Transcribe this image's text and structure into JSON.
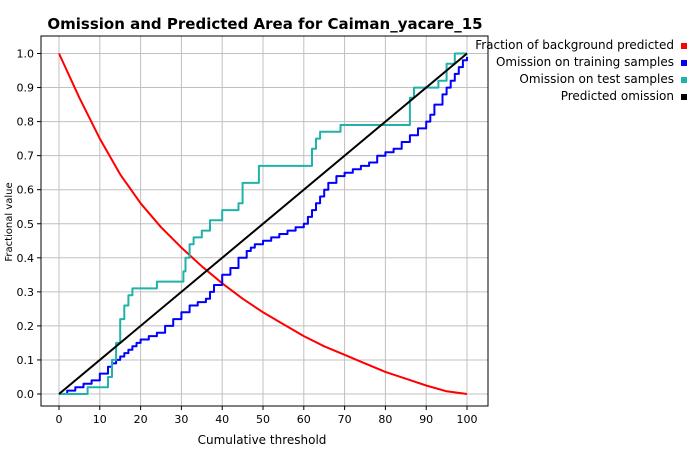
{
  "chart_data": {
    "type": "line",
    "title": "Omission and Predicted Area for Caiman_yacare_15",
    "xlabel": "Cumulative threshold",
    "ylabel": "Fractional value",
    "xlim": [
      0,
      100
    ],
    "ylim": [
      0,
      1.0
    ],
    "xticks": [
      0,
      10,
      20,
      30,
      40,
      50,
      60,
      70,
      80,
      90,
      100
    ],
    "yticks": [
      0.0,
      0.1,
      0.2,
      0.3,
      0.4,
      0.5,
      0.6,
      0.7,
      0.8,
      0.9,
      1.0
    ],
    "ytick_labels": [
      "0.0",
      "0.1",
      "0.2",
      "0.3",
      "0.4",
      "0.5",
      "0.6",
      "0.7",
      "0.8",
      "0.9",
      "1.0"
    ],
    "grid": true,
    "legend_position": "outside-right",
    "series": [
      {
        "name": "Fraction of background predicted",
        "color": "#ff0000",
        "step": false,
        "x": [
          0,
          5,
          10,
          15,
          20,
          25,
          30,
          35,
          40,
          45,
          50,
          55,
          60,
          65,
          70,
          75,
          80,
          85,
          90,
          95,
          100
        ],
        "y": [
          1.0,
          0.87,
          0.75,
          0.645,
          0.56,
          0.49,
          0.43,
          0.375,
          0.325,
          0.28,
          0.24,
          0.205,
          0.17,
          0.14,
          0.115,
          0.09,
          0.065,
          0.045,
          0.025,
          0.008,
          0.0
        ]
      },
      {
        "name": "Omission on training samples",
        "color": "#0000ff",
        "step": true,
        "x": [
          0,
          2,
          4,
          6,
          8,
          10,
          12,
          13,
          14,
          15,
          16,
          17,
          18,
          19,
          20,
          22,
          24,
          26,
          28,
          30,
          32,
          34,
          36,
          37,
          38,
          40,
          42,
          44,
          46,
          47,
          48,
          50,
          52,
          54,
          56,
          58,
          60,
          61,
          62,
          63,
          64,
          65,
          66,
          68,
          70,
          72,
          74,
          76,
          78,
          80,
          82,
          84,
          86,
          88,
          90,
          91,
          92,
          94,
          95,
          96,
          97,
          98,
          99,
          100
        ],
        "y": [
          0.0,
          0.01,
          0.02,
          0.03,
          0.04,
          0.06,
          0.08,
          0.09,
          0.1,
          0.11,
          0.12,
          0.13,
          0.14,
          0.15,
          0.16,
          0.17,
          0.18,
          0.2,
          0.22,
          0.24,
          0.26,
          0.27,
          0.28,
          0.3,
          0.32,
          0.35,
          0.37,
          0.4,
          0.42,
          0.43,
          0.44,
          0.45,
          0.46,
          0.47,
          0.48,
          0.49,
          0.5,
          0.52,
          0.54,
          0.56,
          0.58,
          0.6,
          0.62,
          0.64,
          0.65,
          0.66,
          0.67,
          0.68,
          0.7,
          0.71,
          0.72,
          0.74,
          0.76,
          0.78,
          0.8,
          0.82,
          0.85,
          0.88,
          0.9,
          0.92,
          0.94,
          0.96,
          0.98,
          0.99
        ]
      },
      {
        "name": "Omission on test samples",
        "color": "#20b2aa",
        "step": true,
        "x": [
          0,
          2,
          4,
          7,
          8,
          12,
          13,
          14,
          15,
          16,
          17,
          18,
          19,
          24,
          30,
          30.5,
          31,
          32,
          33,
          35,
          37,
          40,
          44,
          45,
          49,
          61,
          62,
          63,
          64,
          69,
          86,
          87,
          88,
          93,
          95,
          97,
          100
        ],
        "y": [
          0.0,
          0.0,
          0.0,
          0.02,
          0.02,
          0.05,
          0.1,
          0.15,
          0.22,
          0.26,
          0.29,
          0.31,
          0.31,
          0.33,
          0.33,
          0.36,
          0.4,
          0.44,
          0.46,
          0.48,
          0.51,
          0.54,
          0.56,
          0.62,
          0.67,
          0.67,
          0.72,
          0.75,
          0.77,
          0.79,
          0.87,
          0.9,
          0.9,
          0.92,
          0.97,
          1.0,
          1.0
        ]
      },
      {
        "name": "Predicted omission",
        "color": "#000000",
        "step": false,
        "x": [
          0,
          100
        ],
        "y": [
          0.0,
          1.0
        ]
      }
    ]
  }
}
